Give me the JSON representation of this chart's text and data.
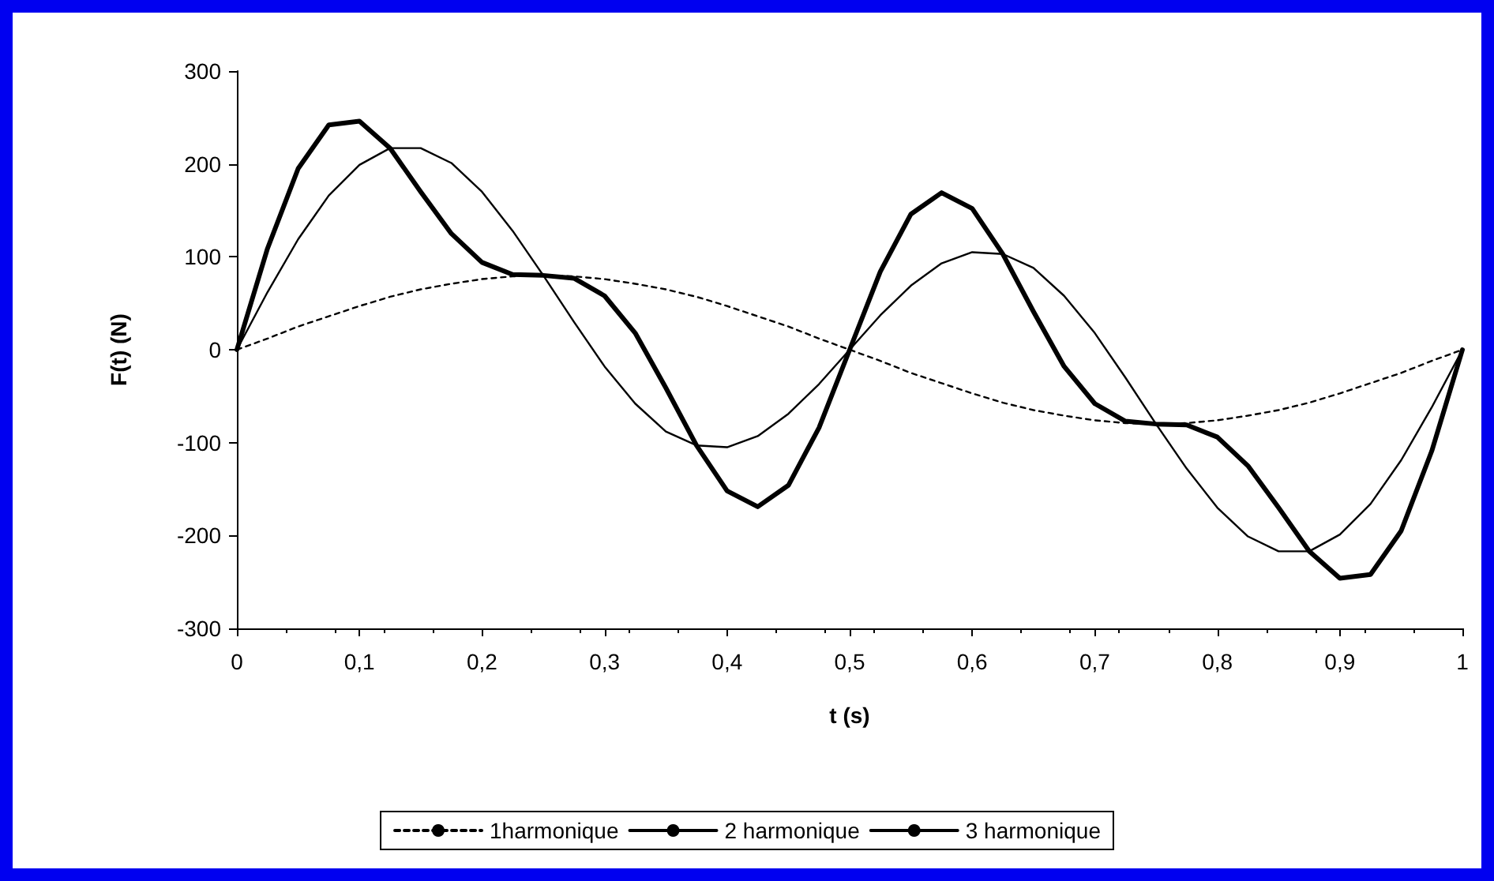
{
  "chart_data": {
    "type": "line",
    "xlabel": "t (s)",
    "ylabel": "F(t) (N)",
    "x": [
      0,
      0.025,
      0.05,
      0.075,
      0.1,
      0.125,
      0.15,
      0.175,
      0.2,
      0.225,
      0.25,
      0.275,
      0.3,
      0.325,
      0.35,
      0.375,
      0.4,
      0.425,
      0.45,
      0.475,
      0.5,
      0.525,
      0.55,
      0.575,
      0.6,
      0.625,
      0.65,
      0.675,
      0.7,
      0.725,
      0.75,
      0.775,
      0.8,
      0.825,
      0.85,
      0.875,
      0.9,
      0.925,
      0.95,
      0.975,
      1
    ],
    "series": [
      {
        "name": "1harmonique",
        "color": "#000000",
        "line_style": "dashed",
        "values": [
          0,
          12,
          25,
          36,
          47,
          57,
          65,
          71,
          76,
          79,
          80,
          79,
          76,
          71,
          65,
          57,
          47,
          36,
          25,
          12,
          0,
          -12,
          -25,
          -36,
          -47,
          -57,
          -65,
          -71,
          -76,
          -79,
          -80,
          -79,
          -76,
          -71,
          -65,
          -57,
          -47,
          -36,
          -25,
          -12,
          0
        ]
      },
      {
        "name": "2 harmonique",
        "color": "#000000",
        "line_style": "solid",
        "values": [
          0,
          62,
          119,
          166,
          199,
          217,
          217,
          201,
          170,
          128,
          80,
          30,
          -18,
          -58,
          -88,
          -103,
          -105,
          -93,
          -69,
          -37,
          0,
          37,
          69,
          93,
          105,
          103,
          88,
          58,
          18,
          -30,
          -80,
          -128,
          -170,
          -201,
          -217,
          -217,
          -199,
          -166,
          -119,
          -62,
          0
        ]
      },
      {
        "name": "3 harmonique",
        "color": "#000000",
        "line_style": "solid",
        "values": [
          0,
          109,
          195,
          242,
          246,
          217,
          170,
          125,
          94,
          81,
          80,
          77,
          58,
          18,
          -41,
          -103,
          -152,
          -169,
          -146,
          -84,
          0,
          84,
          146,
          169,
          152,
          103,
          41,
          -18,
          -58,
          -77,
          -80,
          -81,
          -94,
          -125,
          -170,
          -217,
          -246,
          -242,
          -195,
          -109,
          0
        ]
      }
    ],
    "xlim": [
      0,
      1
    ],
    "xticks": [
      0,
      {
        "value": 0.1,
        "label": "0,1"
      },
      {
        "value": 0.2,
        "label": "0,2"
      },
      {
        "value": 0.3,
        "label": "0,3"
      },
      {
        "value": 0.4,
        "label": "0,4"
      },
      {
        "value": 0.5,
        "label": "0,5"
      },
      {
        "value": 0.6,
        "label": "0,6"
      },
      {
        "value": 0.7,
        "label": "0,7"
      },
      {
        "value": 0.8,
        "label": "0,8"
      },
      {
        "value": 0.9,
        "label": "0,9"
      },
      1
    ],
    "ylim": [
      -300,
      300
    ],
    "yticks": [
      -300,
      -200,
      -100,
      0,
      100,
      200,
      300
    ],
    "grid": false,
    "legend": "bottom",
    "marker": "none"
  }
}
